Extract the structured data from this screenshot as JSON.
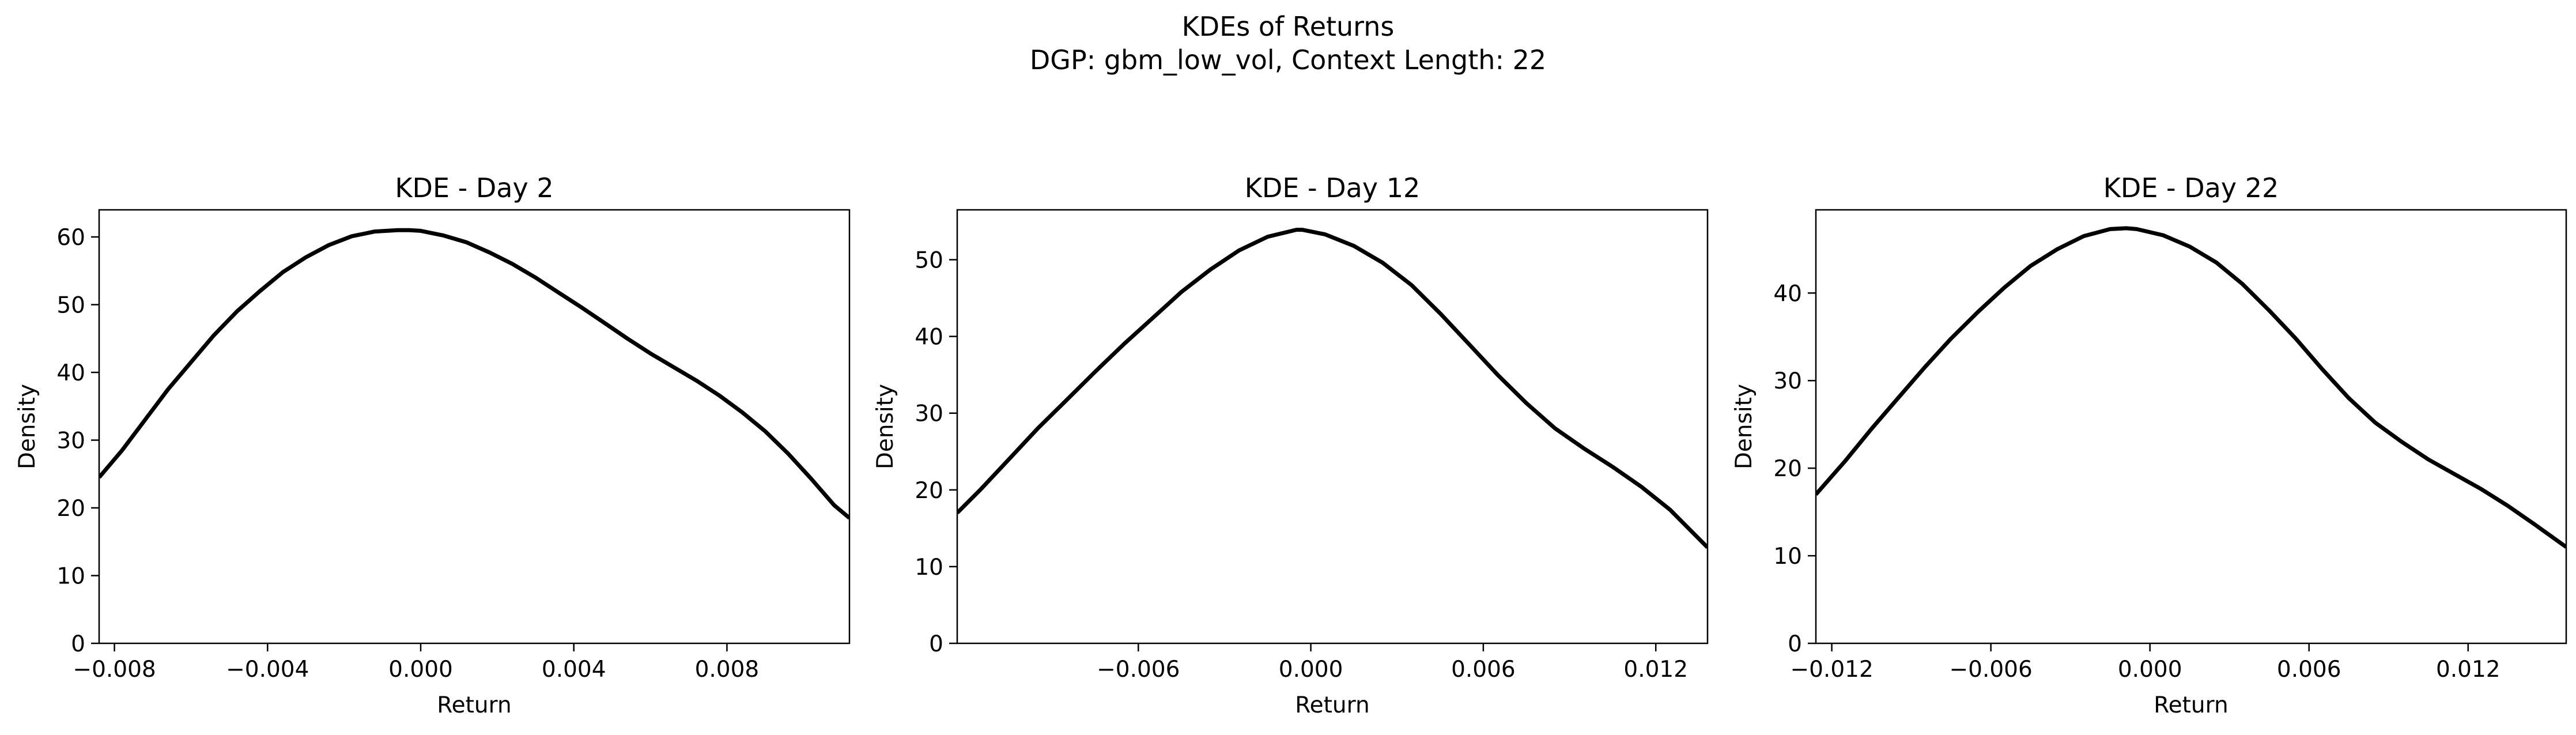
{
  "figure": {
    "title": "KDEs of Returns",
    "subtitle": "DGP: gbm_low_vol, Context Length: 22"
  },
  "chart_data": [
    {
      "type": "line",
      "title": "KDE - Day 2",
      "xlabel": "Return",
      "ylabel": "Density",
      "xlim": [
        -0.0084,
        0.0112
      ],
      "ylim": [
        0,
        64
      ],
      "xticks": [
        -0.008,
        -0.004,
        0.0,
        0.004,
        0.008
      ],
      "xtick_labels": [
        "−0.008",
        "−0.004",
        "0.000",
        "0.004",
        "0.008"
      ],
      "yticks": [
        0,
        10,
        20,
        30,
        40,
        50,
        60
      ],
      "ytick_labels": [
        "0",
        "10",
        "20",
        "30",
        "40",
        "50",
        "60"
      ],
      "grid": false,
      "line_color": "#000000",
      "series": [
        {
          "x": [
            -0.0084,
            -0.0078,
            -0.0072,
            -0.0066,
            -0.006,
            -0.0054,
            -0.0048,
            -0.0042,
            -0.0036,
            -0.003,
            -0.0024,
            -0.0018,
            -0.0012,
            -0.0006,
            -0.0003,
            0.0,
            0.0006,
            0.0012,
            0.0018,
            0.0024,
            0.003,
            0.0036,
            0.0042,
            0.0048,
            0.0054,
            0.006,
            0.0066,
            0.0072,
            0.0078,
            0.0084,
            0.009,
            0.0096,
            0.0102,
            0.0108,
            0.0112
          ],
          "y": [
            24.5,
            28.5,
            33.0,
            37.5,
            41.5,
            45.5,
            49.0,
            52.0,
            54.8,
            57.0,
            58.8,
            60.1,
            60.8,
            61.0,
            61.0,
            60.9,
            60.2,
            59.2,
            57.7,
            56.0,
            54.0,
            51.8,
            49.6,
            47.3,
            45.0,
            42.8,
            40.8,
            38.8,
            36.6,
            34.1,
            31.3,
            28.0,
            24.3,
            20.4,
            18.5
          ]
        }
      ]
    },
    {
      "type": "line",
      "title": "KDE - Day 12",
      "xlabel": "Return",
      "ylabel": "Density",
      "xlim": [
        -0.0123,
        0.0138
      ],
      "ylim": [
        0,
        56.5
      ],
      "xticks": [
        -0.006,
        0.0,
        0.006,
        0.012
      ],
      "xtick_labels": [
        "−0.006",
        "0.000",
        "0.006",
        "0.012"
      ],
      "yticks": [
        0,
        10,
        20,
        30,
        40,
        50
      ],
      "ytick_labels": [
        "0",
        "10",
        "20",
        "30",
        "40",
        "50"
      ],
      "grid": false,
      "line_color": "#000000",
      "series": [
        {
          "x": [
            -0.0123,
            -0.0115,
            -0.0105,
            -0.0095,
            -0.0085,
            -0.0075,
            -0.0065,
            -0.0055,
            -0.0045,
            -0.0035,
            -0.0025,
            -0.0015,
            -0.0005,
            -0.0003,
            0.0005,
            0.0015,
            0.0025,
            0.0035,
            0.0045,
            0.0055,
            0.0065,
            0.0075,
            0.0085,
            0.0095,
            0.0105,
            0.0115,
            0.0125,
            0.0138
          ],
          "y": [
            17.0,
            20.0,
            24.0,
            28.0,
            31.7,
            35.4,
            39.0,
            42.4,
            45.8,
            48.7,
            51.2,
            53.0,
            53.9,
            53.9,
            53.3,
            51.8,
            49.6,
            46.7,
            43.0,
            39.0,
            35.0,
            31.3,
            28.0,
            25.4,
            23.0,
            20.4,
            17.4,
            12.5
          ]
        }
      ]
    },
    {
      "type": "line",
      "title": "KDE - Day 22",
      "xlabel": "Return",
      "ylabel": "Density",
      "xlim": [
        -0.0126,
        0.0157
      ],
      "ylim": [
        0,
        49.5
      ],
      "xticks": [
        -0.012,
        -0.006,
        0.0,
        0.006,
        0.012
      ],
      "xtick_labels": [
        "−0.012",
        "−0.006",
        "0.000",
        "0.006",
        "0.012"
      ],
      "yticks": [
        0,
        10,
        20,
        30,
        40
      ],
      "ytick_labels": [
        "0",
        "10",
        "20",
        "30",
        "40"
      ],
      "grid": false,
      "line_color": "#000000",
      "series": [
        {
          "x": [
            -0.0126,
            -0.0115,
            -0.0105,
            -0.0095,
            -0.0085,
            -0.0075,
            -0.0065,
            -0.0055,
            -0.0045,
            -0.0035,
            -0.0025,
            -0.0015,
            -0.0009,
            -0.0005,
            0.0005,
            0.0015,
            0.0025,
            0.0035,
            0.0045,
            0.0055,
            0.0065,
            0.0075,
            0.0085,
            0.0095,
            0.0105,
            0.0115,
            0.0125,
            0.0135,
            0.0145,
            0.0157
          ],
          "y": [
            17.0,
            20.8,
            24.5,
            28.0,
            31.5,
            34.8,
            37.8,
            40.6,
            43.1,
            45.0,
            46.5,
            47.3,
            47.4,
            47.3,
            46.6,
            45.3,
            43.5,
            41.0,
            38.0,
            34.8,
            31.3,
            28.0,
            25.2,
            23.0,
            21.0,
            19.3,
            17.6,
            15.7,
            13.6,
            11.0
          ]
        }
      ]
    }
  ]
}
